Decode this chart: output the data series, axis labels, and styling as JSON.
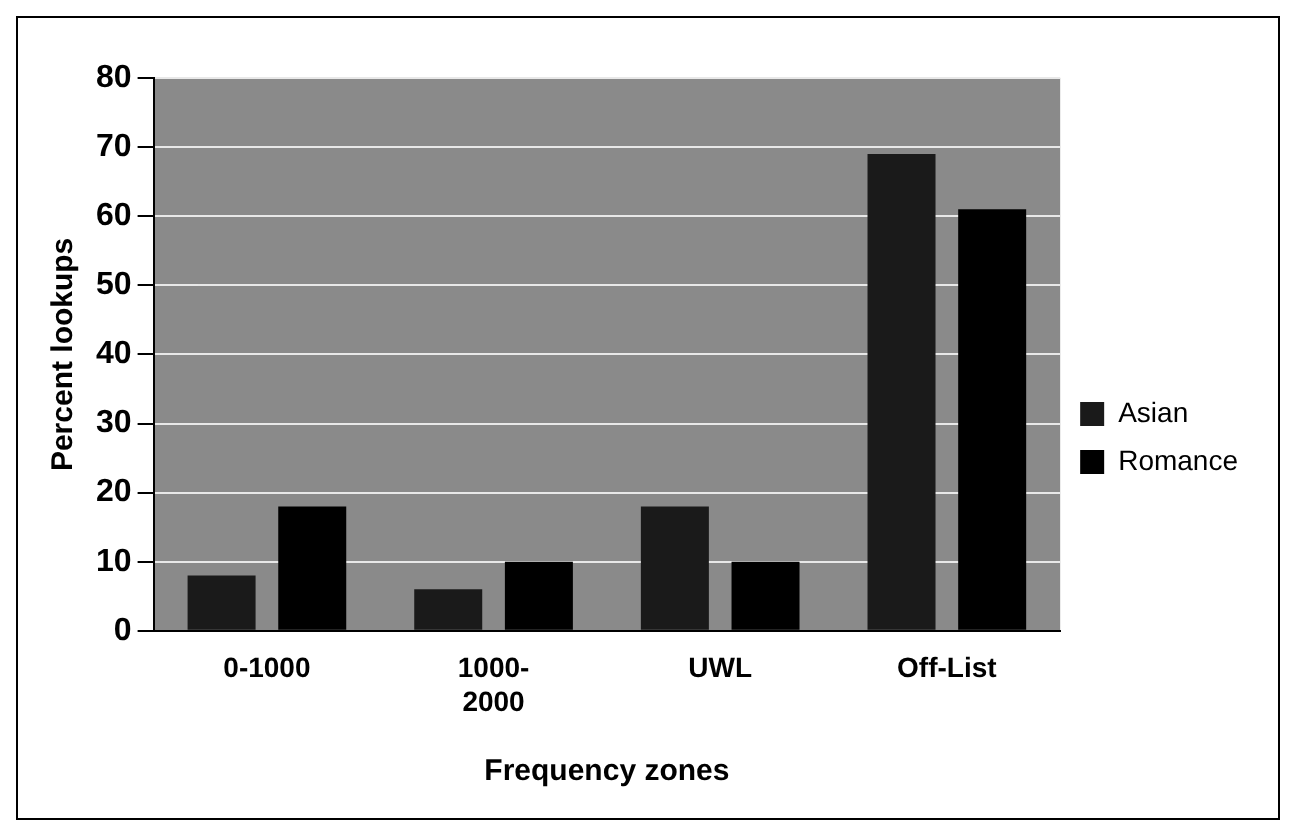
{
  "chart_data": {
    "type": "bar",
    "xlabel": "Frequency zones",
    "ylabel": "Percent lookups",
    "categories": [
      "0-1000",
      "1000-2000",
      "UWL",
      "Off-List"
    ],
    "series": [
      {
        "name": "Asian",
        "color": "#1a1a1a",
        "values": [
          8,
          6,
          18,
          69
        ]
      },
      {
        "name": "Romance",
        "color": "#000000",
        "values": [
          18,
          10,
          10,
          61
        ]
      }
    ],
    "ylim": [
      0,
      80
    ],
    "yticks": [
      0,
      10,
      20,
      30,
      40,
      50,
      60,
      70,
      80
    ],
    "grid": "y",
    "legend": "right"
  }
}
